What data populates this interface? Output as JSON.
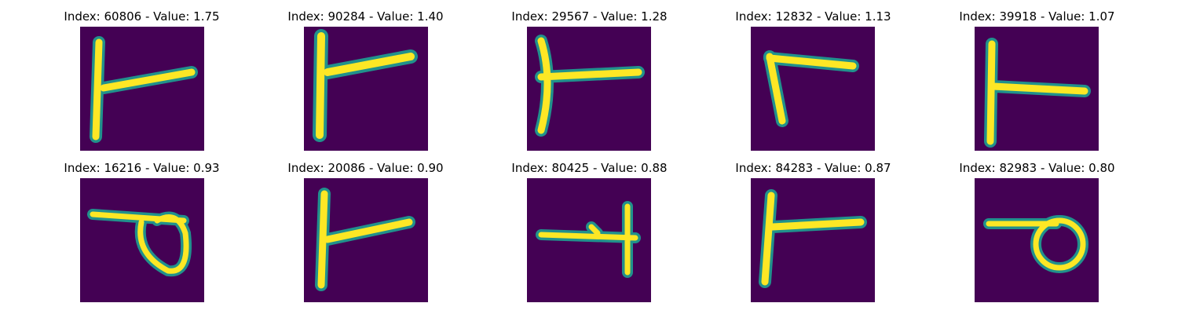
{
  "colors": {
    "background": "#440154",
    "stroke_edge": "#21918c",
    "stroke_mid": "#5ec962",
    "stroke_core": "#fde725"
  },
  "panels": [
    {
      "title": "Index: 60806 - Value: 1.75",
      "glyph": "t-shape-tall-left-bar"
    },
    {
      "title": "Index: 90284 - Value: 1.40",
      "glyph": "t-shape-tall-left-bar"
    },
    {
      "title": "Index: 29567 - Value: 1.28",
      "glyph": "t-shape-curved-bar"
    },
    {
      "title": "Index: 12832 - Value: 1.13",
      "glyph": "l-shape-short"
    },
    {
      "title": "Index: 39918 - Value: 1.07",
      "glyph": "t-shape-straight"
    },
    {
      "title": "Index: 16216 - Value: 0.93",
      "glyph": "bar-with-loop"
    },
    {
      "title": "Index: 20086 - Value: 0.90",
      "glyph": "t-shape-tall-left-bar"
    },
    {
      "title": "Index: 80425 - Value: 0.88",
      "glyph": "reversed-t-shape"
    },
    {
      "title": "Index: 84283 - Value: 0.87",
      "glyph": "t-shape-tall-left-bar"
    },
    {
      "title": "Index: 82983 - Value: 0.80",
      "glyph": "bar-with-circle"
    }
  ]
}
